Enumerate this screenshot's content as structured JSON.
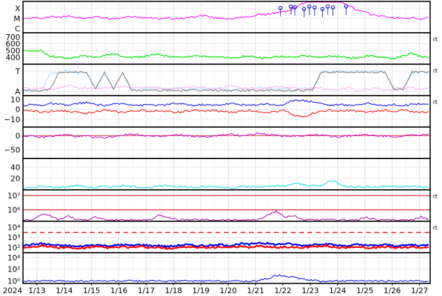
{
  "chart_data": {
    "type": "line",
    "start_date": "2024-01-12",
    "days": 15.5,
    "x_start_label": "2024",
    "x_ticks": [
      "1/13",
      "1/14",
      "1/15",
      "1/16",
      "1/17",
      "1/18",
      "1/19",
      "1/20",
      "1/21",
      "1/22",
      "1/23",
      "1/24",
      "1/25",
      "1/26",
      "1/27"
    ],
    "panels": [
      {
        "id": "xray",
        "kind": "categorical",
        "ticks": [
          "X",
          "M",
          "C"
        ],
        "series": [
          {
            "color": "#ff00ff",
            "values": [
              0.45,
              0.5,
              0.48,
              0.55,
              0.52,
              0.6,
              0.5,
              0.47,
              0.55,
              0.5,
              0.46,
              0.5,
              0.55,
              0.5,
              0.52,
              0.48,
              0.5,
              0.45,
              0.5,
              0.55,
              0.6,
              0.5,
              0.48,
              0.47,
              0.5,
              0.55,
              0.62,
              0.65,
              0.7,
              0.75,
              0.9,
              1.1,
              1.3,
              1.5,
              1.4,
              1.2,
              1.0,
              0.8,
              0.7,
              0.6,
              0.55,
              0.5,
              0.48,
              0.5,
              0.45,
              0.5
            ]
          }
        ],
        "markers": [
          {
            "day": 9.8
          },
          {
            "day": 10.2
          },
          {
            "day": 10.35
          },
          {
            "day": 10.7
          },
          {
            "day": 10.9
          },
          {
            "day": 11.1
          },
          {
            "day": 11.4
          },
          {
            "day": 11.6
          },
          {
            "day": 11.8
          },
          {
            "day": 12.3
          }
        ],
        "marker_color": "#0000cc",
        "right_label": ""
      },
      {
        "id": "speed",
        "kind": "linear",
        "ticks": [
          "700",
          "600",
          "500",
          "400"
        ],
        "tick_values": [
          700,
          600,
          500,
          400
        ],
        "ylim": [
          300,
          760
        ],
        "series": [
          {
            "color": "#00ee00",
            "values": [
              490,
              500,
              495,
              420,
              400,
              380,
              410,
              420,
              400,
              430,
              450,
              420,
              400,
              410,
              430,
              440,
              420,
              410,
              400,
              420,
              430,
              410,
              400,
              390,
              410,
              420,
              400,
              390,
              410,
              420,
              400,
              430,
              410,
              400,
              420,
              410,
              400,
              390,
              420,
              410,
              400,
              380,
              420,
              460,
              410,
              400
            ]
          }
        ],
        "right_label": "rt"
      },
      {
        "id": "sector",
        "kind": "categorical",
        "ticks": [
          "T",
          "A"
        ],
        "series": [
          {
            "color": "#aaddff",
            "values": [
              0.1,
              0.1,
              0.1,
              0.8,
              0.85,
              0.9,
              0.8,
              0.85,
              0.2,
              0.8,
              0.2,
              0.8,
              0.1,
              0.15,
              0.2,
              0.2,
              0.15,
              0.2,
              0.1,
              0.2,
              0.15,
              0.2,
              0.2,
              0.1,
              0.2,
              0.15,
              0.2,
              0.2,
              0.15,
              0.2,
              0.1,
              0.2,
              0.15,
              0.9,
              0.85,
              0.9,
              0.85,
              0.9,
              0.85,
              0.9,
              0.85,
              0.2,
              0.15,
              0.8,
              0.85,
              0.9
            ]
          },
          {
            "color": "#ffaaee",
            "values": [
              0.2,
              0.15,
              0.2,
              0.15,
              0.2,
              0.3,
              0.2,
              0.2,
              0.15,
              0.2,
              0.2,
              0.3,
              0.2,
              0.2,
              0.25,
              0.2,
              0.15,
              0.2,
              0.2,
              0.25,
              0.2,
              0.15,
              0.2,
              0.3,
              0.2,
              0.2,
              0.15,
              0.2,
              0.25,
              0.2,
              0.2,
              0.15,
              0.2,
              0.2,
              0.1,
              0.15,
              0.2,
              0.1,
              0.15,
              0.2,
              0.1,
              0.15,
              0.2,
              0.2,
              0.15,
              0.2
            ]
          },
          {
            "color": "#777777",
            "values": [
              0.1,
              0.1,
              0.1,
              0.15,
              0.85,
              0.85,
              0.85,
              0.85,
              0.15,
              0.85,
              0.15,
              0.85,
              0.1,
              0.1,
              0.1,
              0.1,
              0.1,
              0.1,
              0.1,
              0.1,
              0.1,
              0.1,
              0.1,
              0.1,
              0.1,
              0.1,
              0.1,
              0.1,
              0.1,
              0.1,
              0.1,
              0.1,
              0.1,
              0.85,
              0.85,
              0.85,
              0.85,
              0.85,
              0.85,
              0.85,
              0.85,
              0.15,
              0.15,
              0.85,
              0.85,
              0.85
            ]
          }
        ],
        "right_label": "rt"
      },
      {
        "id": "bz",
        "kind": "linear",
        "ticks": [
          "10",
          "0",
          "−10"
        ],
        "tick_values": [
          10,
          0,
          -10
        ],
        "ylim": [
          -18,
          14
        ],
        "series": [
          {
            "color": "#0000ee",
            "values": [
              4,
              5,
              4,
              6,
              5,
              4,
              6,
              7,
              5,
              4,
              5,
              6,
              5,
              4,
              5,
              4,
              5,
              6,
              5,
              4,
              5,
              4,
              5,
              6,
              5,
              4,
              5,
              6,
              4,
              5,
              10,
              9,
              8,
              6,
              4,
              5,
              4,
              5,
              6,
              5,
              4,
              5,
              4,
              5,
              6,
              5
            ]
          },
          {
            "color": "#ff0000",
            "values": [
              -2,
              -1,
              -3,
              -2,
              -1,
              -2,
              -3,
              -4,
              -2,
              -1,
              -2,
              -3,
              -2,
              -1,
              -2,
              -1,
              -2,
              -3,
              -2,
              -1,
              -2,
              -1,
              -2,
              -3,
              -2,
              -1,
              -2,
              -3,
              -2,
              -1,
              -6,
              -8,
              -4,
              -2,
              -1,
              -2,
              -1,
              -2,
              -3,
              -2,
              -1,
              -2,
              -1,
              -2,
              -3,
              -2
            ]
          }
        ],
        "right_label": "rt"
      },
      {
        "id": "phi",
        "kind": "linear",
        "ticks": [
          "0",
          "−50"
        ],
        "tick_values": [
          0,
          -50
        ],
        "ylim": [
          -80,
          30
        ],
        "zero_line": true,
        "series": [
          {
            "color": "#cc00cc",
            "values": [
              0,
              -3,
              -6,
              -2,
              1,
              3,
              -4,
              -2,
              -6,
              -8,
              -3,
              2,
              6,
              3,
              -2,
              -4,
              -1,
              2,
              0,
              -3,
              -5,
              -2,
              2,
              4,
              0,
              3,
              8,
              4,
              1,
              -2,
              -1,
              0,
              3,
              1,
              -2,
              -4,
              -1,
              2,
              3,
              0,
              -2,
              -3,
              -1,
              2,
              0,
              8
            ]
          }
        ],
        "right_label": ""
      },
      {
        "id": "temp",
        "kind": "linear",
        "ticks": [
          "40",
          "20"
        ],
        "tick_values": [
          40,
          20
        ],
        "ylim": [
          0,
          55
        ],
        "series": [
          {
            "color": "#00dddd",
            "values": [
              3,
              4,
              6,
              5,
              4,
              6,
              8,
              5,
              4,
              6,
              5,
              7,
              6,
              5,
              4,
              6,
              8,
              6,
              5,
              4,
              5,
              6,
              5,
              4,
              6,
              5,
              6,
              5,
              7,
              6,
              12,
              9,
              8,
              6,
              18,
              10,
              6,
              5,
              6,
              5,
              6,
              7,
              5,
              6,
              5,
              4
            ]
          }
        ],
        "right_label": ""
      },
      {
        "id": "flux",
        "kind": "log",
        "ticks": [
          "10⁷",
          "10⁶"
        ],
        "tick_values": [
          7,
          6
        ],
        "ylim": [
          5.2,
          7.4
        ],
        "hlines": [
          {
            "value": 7,
            "color": "#cc0000"
          },
          {
            "value": 6,
            "color": "#cc0000"
          }
        ],
        "series": [
          {
            "color": "#aa00aa",
            "values": [
              5.3,
              5.3,
              5.7,
              5.6,
              5.3,
              5.6,
              5.3,
              5.3,
              5.5,
              5.3,
              5.3,
              5.3,
              5.3,
              5.3,
              5.3,
              5.6,
              5.5,
              5.3,
              5.3,
              5.3,
              5.3,
              5.3,
              5.3,
              5.3,
              5.3,
              5.3,
              5.3,
              5.6,
              5.9,
              5.5,
              5.6,
              5.3,
              5.3,
              5.3,
              5.3,
              5.3,
              5.3,
              5.3,
              5.5,
              5.3,
              5.3,
              5.3,
              5.3,
              5.3,
              5.5,
              5.3
            ]
          }
        ],
        "right_label": "rt"
      },
      {
        "id": "proton",
        "kind": "log",
        "ticks": [
          "10⁴",
          "10³",
          "10²"
        ],
        "tick_values": [
          4,
          3,
          2
        ],
        "ylim": [
          1.5,
          4.6
        ],
        "dashed_line": {
          "value": 3.5,
          "color": "#dd0000"
        },
        "series": [
          {
            "color": "#0000ee",
            "values": [
              2.2,
              2.3,
              2.4,
              2.3,
              2.2,
              2.2,
              2.1,
              2.2,
              2.3,
              2.2,
              2.2,
              2.3,
              2.2,
              2.3,
              2.2,
              2.2,
              2.1,
              2.2,
              2.3,
              2.2,
              2.2,
              2.2,
              2.3,
              2.2,
              2.4,
              2.3,
              2.5,
              2.4,
              2.3,
              2.4,
              2.3,
              2.2,
              2.3,
              2.4,
              2.3,
              2.2,
              2.2,
              2.3,
              2.2,
              2.2,
              2.3,
              2.2,
              2.2,
              2.3,
              2.2,
              2.3
            ]
          },
          {
            "color": "#ff0000",
            "values": [
              2.0,
              2.1,
              2.2,
              2.1,
              2.0,
              2.0,
              1.9,
              2.0,
              2.1,
              2.0,
              2.0,
              2.1,
              2.0,
              2.1,
              2.0,
              2.0,
              1.9,
              2.0,
              2.1,
              2.0,
              2.0,
              2.0,
              2.1,
              2.0,
              2.1,
              2.0,
              2.2,
              2.1,
              2.0,
              2.1,
              2.0,
              2.0,
              2.1,
              2.2,
              2.1,
              2.0,
              2.0,
              2.1,
              2.0,
              2.0,
              2.1,
              2.0,
              2.0,
              2.1,
              2.0,
              2.1
            ]
          }
        ],
        "right_label": "rt"
      },
      {
        "id": "electron",
        "kind": "log",
        "ticks": [
          "10⁴",
          "10²",
          "10⁰"
        ],
        "tick_values": [
          4,
          2,
          0
        ],
        "ylim": [
          -0.4,
          4.8
        ],
        "series": [
          {
            "color": "#0000ee",
            "values": [
              0,
              0,
              0,
              0,
              0,
              0,
              0,
              0,
              0,
              0,
              0,
              0,
              0,
              0,
              0,
              0,
              0,
              0,
              0,
              0,
              0,
              0,
              0,
              0,
              0,
              0,
              0.05,
              0.4,
              1.0,
              0.9,
              0.6,
              0.3,
              0.1,
              0,
              0,
              0,
              0,
              0,
              0,
              0,
              0,
              0,
              0,
              0,
              0,
              0
            ]
          }
        ],
        "right_label": ""
      }
    ]
  }
}
